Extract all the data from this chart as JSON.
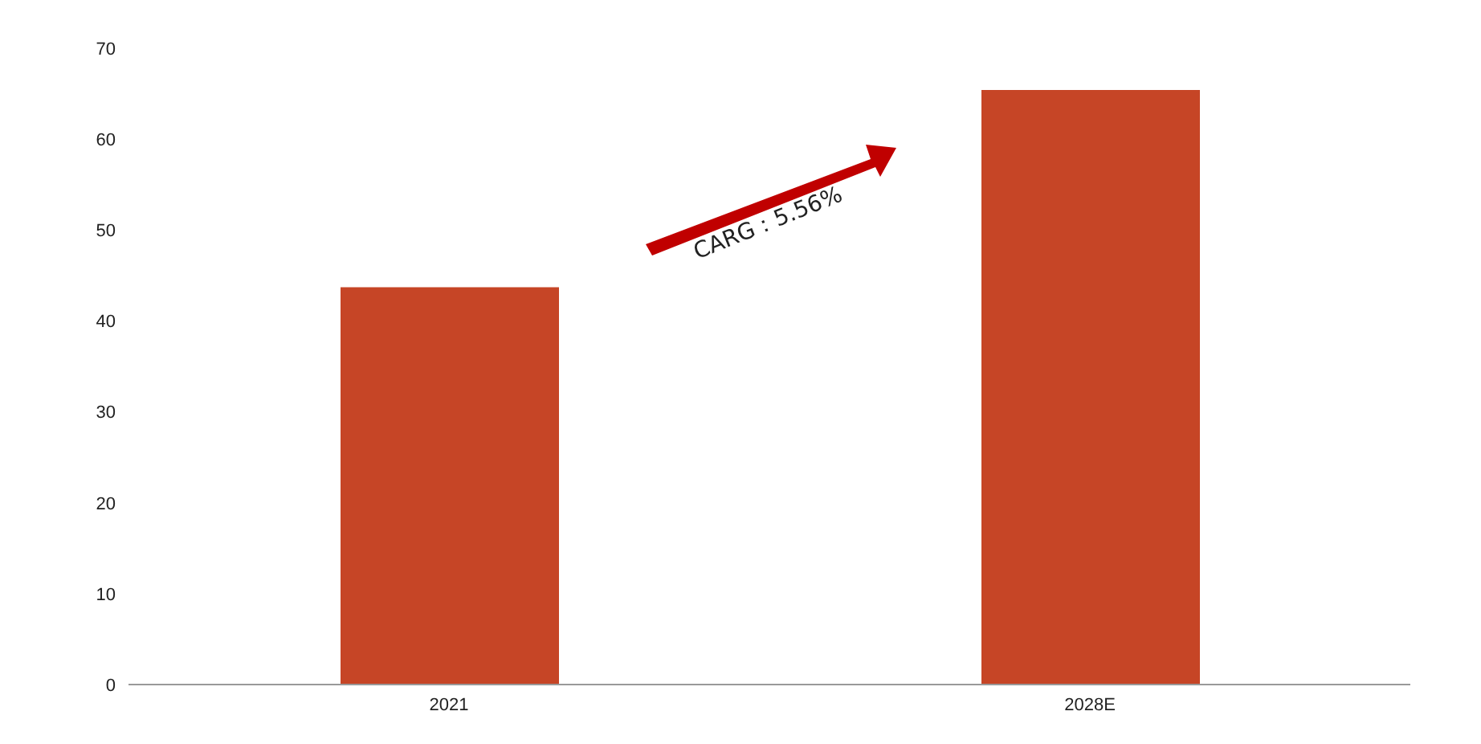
{
  "chart_data": {
    "type": "bar",
    "categories": [
      "2021",
      "2028E"
    ],
    "values": [
      43.7,
      65.4
    ],
    "color": "#c64526",
    "ylim": [
      0,
      70
    ],
    "yticks": [
      0,
      10,
      20,
      30,
      40,
      50,
      60,
      70
    ],
    "grid": false,
    "annotations": [
      "CARG：5.56%"
    ]
  }
}
